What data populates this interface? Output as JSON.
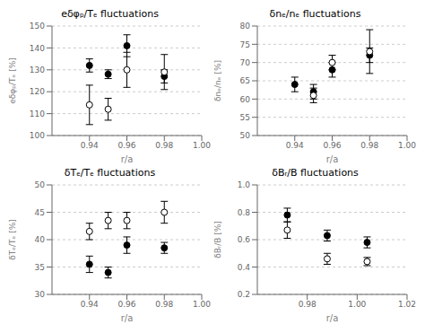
{
  "chart_data": [
    {
      "type": "scatter",
      "title": "eδφₚ/Tₑ fluctuations",
      "xlabel": "r/a",
      "ylabel": "eδφₚ/Tₑ [%]",
      "xlim": [
        0.92,
        1.0
      ],
      "ylim": [
        100,
        150
      ],
      "xticks": [
        0.94,
        0.96,
        0.98,
        {
          "value": 1.0,
          "label": "1.00"
        }
      ],
      "yticks": [
        100,
        110,
        120,
        130,
        140,
        150
      ],
      "grid": "y",
      "series": [
        {
          "marker": "filled",
          "color": "#000000",
          "x": [
            0.94,
            0.95,
            0.96,
            0.98
          ],
          "values": [
            132,
            128,
            141,
            127
          ],
          "yerr": [
            3,
            2,
            5,
            3
          ]
        },
        {
          "marker": "open",
          "color": "#000000",
          "x": [
            0.94,
            0.95,
            0.96,
            0.98
          ],
          "values": [
            114,
            112,
            130,
            129
          ],
          "yerr": [
            9,
            5,
            8,
            8
          ]
        }
      ]
    },
    {
      "type": "scatter",
      "title": "δnₑ/nₑ fluctuations",
      "xlabel": "r/a",
      "ylabel": "δnₑ/nₑ [%]",
      "xlim": [
        0.92,
        1.0
      ],
      "ylim": [
        50,
        80
      ],
      "xticks": [
        0.94,
        0.96,
        0.98,
        {
          "value": 1.0,
          "label": "1.00"
        }
      ],
      "yticks": [
        50,
        55,
        60,
        65,
        70,
        75,
        80
      ],
      "grid": "y",
      "series": [
        {
          "marker": "filled",
          "color": "#000000",
          "x": [
            0.94,
            0.95,
            0.96,
            0.98
          ],
          "values": [
            64,
            62,
            68,
            72
          ],
          "yerr": [
            2,
            2,
            2,
            2
          ]
        },
        {
          "marker": "open",
          "color": "#000000",
          "x": [
            0.95,
            0.96,
            0.98
          ],
          "values": [
            61,
            70,
            73
          ],
          "yerr": [
            2,
            2,
            6
          ]
        }
      ]
    },
    {
      "type": "scatter",
      "title": "δTₑ/Tₑ fluctuations",
      "xlabel": "r/a",
      "ylabel": "δTₑ/Tₑ [%]",
      "xlim": [
        0.92,
        1.0
      ],
      "ylim": [
        30,
        50
      ],
      "xticks": [
        0.94,
        0.96,
        0.98,
        {
          "value": 1.0,
          "label": "1.00"
        }
      ],
      "yticks": [
        30,
        35,
        40,
        45,
        50
      ],
      "grid": "y",
      "series": [
        {
          "marker": "filled",
          "color": "#000000",
          "x": [
            0.94,
            0.95,
            0.96,
            0.98
          ],
          "values": [
            35.5,
            34.0,
            39.0,
            38.5
          ],
          "yerr": [
            1.5,
            1.0,
            1.5,
            1.0
          ]
        },
        {
          "marker": "open",
          "color": "#000000",
          "x": [
            0.94,
            0.95,
            0.96,
            0.98
          ],
          "values": [
            41.5,
            43.5,
            43.5,
            45.0
          ],
          "yerr": [
            1.5,
            1.5,
            1.5,
            2.0
          ]
        }
      ]
    },
    {
      "type": "scatter",
      "title": "δBᵣ/B fluctuations",
      "xlabel": "r/a",
      "ylabel": "δBᵣ/B [%]",
      "xlim": [
        0.96,
        1.02
      ],
      "ylim": [
        0.2,
        1.0
      ],
      "xticks": [
        0.98,
        {
          "value": 1.0,
          "label": "1.00"
        },
        1.02
      ],
      "yticks": [
        0.2,
        0.4,
        0.6,
        0.8,
        {
          "value": 1.0,
          "label": "1.0"
        }
      ],
      "grid": "y",
      "series": [
        {
          "marker": "filled",
          "color": "#000000",
          "x": [
            0.972,
            0.988,
            1.004
          ],
          "values": [
            0.78,
            0.63,
            0.58
          ],
          "yerr": [
            0.05,
            0.04,
            0.04
          ]
        },
        {
          "marker": "open",
          "color": "#000000",
          "x": [
            0.972,
            0.988,
            1.004
          ],
          "values": [
            0.67,
            0.46,
            0.44
          ],
          "yerr": [
            0.06,
            0.04,
            0.03
          ]
        }
      ]
    }
  ]
}
